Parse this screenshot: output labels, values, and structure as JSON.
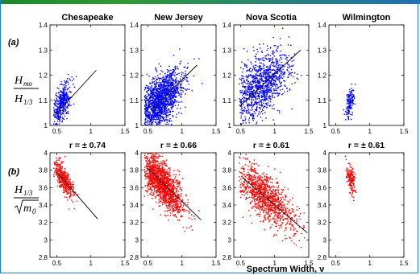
{
  "figure": {
    "row_a_label": "(a)",
    "row_b_label": "(b)",
    "xlabel": "Spectrum Width, ν",
    "ylabel_a": {
      "num": "H",
      "num_sub": "mo",
      "den": "H",
      "den_sub": "1/3"
    },
    "ylabel_b": {
      "num": "H",
      "num_sub": "1/3",
      "den_root": "m",
      "den_sub": "0"
    }
  },
  "colors": {
    "series_a": "#0000ff",
    "series_b": "#ff0000",
    "fit": "#000000",
    "accent": "#1f7fc4"
  },
  "chart_data": [
    {
      "type": "scatter",
      "row": "a",
      "title": "Chesapeake",
      "xlim": [
        0.4,
        1.5
      ],
      "ylim": [
        1.0,
        1.4
      ],
      "xticks": [
        "0.5",
        "1",
        "1.5"
      ],
      "yticks": [
        "1",
        "1.1",
        "1.2",
        "1.3",
        "1.4"
      ],
      "cloud": {
        "cx": 0.58,
        "cy": 1.09,
        "sx": 0.07,
        "sy": 0.035,
        "n": 420,
        "slope": 0.28,
        "xmin": 0.45,
        "xmax": 1.1
      },
      "fit": [
        [
          0.47,
          1.04
        ],
        [
          1.08,
          1.22
        ]
      ]
    },
    {
      "type": "scatter",
      "row": "a",
      "title": "New Jersey",
      "xlim": [
        0.4,
        1.5
      ],
      "ylim": [
        1.0,
        1.4
      ],
      "xticks": [
        "0.5",
        "1",
        "1.5"
      ],
      "yticks": [
        "1",
        "1.1",
        "1.2",
        "1.3",
        "1.4"
      ],
      "cloud": {
        "cx": 0.68,
        "cy": 1.1,
        "sx": 0.16,
        "sy": 0.05,
        "n": 1500,
        "slope": 0.2,
        "xmin": 0.45,
        "xmax": 1.3
      },
      "fit": [
        [
          0.55,
          1.06
        ],
        [
          1.22,
          1.24
        ]
      ]
    },
    {
      "type": "scatter",
      "row": "a",
      "title": "Nova Scotia",
      "xlim": [
        0.4,
        1.5
      ],
      "ylim": [
        1.0,
        1.4
      ],
      "xticks": [
        "0.5",
        "1",
        "1.5"
      ],
      "yticks": [
        "1",
        "1.1",
        "1.2",
        "1.3",
        "1.4"
      ],
      "cloud": {
        "cx": 0.8,
        "cy": 1.16,
        "sx": 0.22,
        "sy": 0.06,
        "n": 1100,
        "slope": 0.17,
        "xmin": 0.48,
        "xmax": 1.4
      },
      "fit": [
        [
          0.5,
          1.08
        ],
        [
          1.38,
          1.3
        ]
      ]
    },
    {
      "type": "scatter",
      "row": "a",
      "title": "Wilmington",
      "xlim": [
        0.4,
        1.5
      ],
      "ylim": [
        1.0,
        1.4
      ],
      "xticks": [
        "0.5",
        "1",
        "1.5"
      ],
      "yticks": [
        "1",
        "1.1",
        "1.2",
        "1.3",
        "1.4"
      ],
      "cloud": {
        "cx": 0.71,
        "cy": 1.09,
        "sx": 0.035,
        "sy": 0.025,
        "n": 160,
        "slope": 0.35,
        "xmin": 0.6,
        "xmax": 0.82
      },
      "fit": []
    },
    {
      "type": "scatter",
      "row": "b",
      "title": "r = ± 0.74",
      "xlim": [
        0.4,
        1.5
      ],
      "ylim": [
        2.8,
        4.0
      ],
      "xticks": [
        "0.5",
        "1",
        "1.5"
      ],
      "yticks": [
        "2.8",
        "3",
        "3.2",
        "3.4",
        "3.6",
        "3.8",
        "4"
      ],
      "cloud": {
        "cx": 0.6,
        "cy": 3.7,
        "sx": 0.08,
        "sy": 0.07,
        "n": 420,
        "slope": -1.0,
        "xmin": 0.45,
        "xmax": 1.1
      },
      "fit": [
        [
          0.5,
          3.78
        ],
        [
          1.1,
          3.24
        ]
      ]
    },
    {
      "type": "scatter",
      "row": "b",
      "title": "r = ± 0.66",
      "xlim": [
        0.4,
        1.5
      ],
      "ylim": [
        2.8,
        4.0
      ],
      "xticks": [
        "0.5",
        "1",
        "1.5"
      ],
      "yticks": [
        "2.8",
        "3",
        "3.2",
        "3.4",
        "3.6",
        "3.8",
        "4"
      ],
      "cloud": {
        "cx": 0.7,
        "cy": 3.65,
        "sx": 0.16,
        "sy": 0.12,
        "n": 1500,
        "slope": -0.75,
        "xmin": 0.45,
        "xmax": 1.3
      },
      "fit": [
        [
          0.5,
          3.82
        ],
        [
          1.28,
          3.23
        ]
      ]
    },
    {
      "type": "scatter",
      "row": "b",
      "title": "r = ± 0.61",
      "xlim": [
        0.4,
        1.5
      ],
      "ylim": [
        2.8,
        4.0
      ],
      "xticks": [
        "0.5",
        "1",
        "1.5"
      ],
      "yticks": [
        "2.8",
        "3",
        "3.2",
        "3.4",
        "3.6",
        "3.8",
        "4"
      ],
      "cloud": {
        "cx": 0.85,
        "cy": 3.5,
        "sx": 0.22,
        "sy": 0.13,
        "n": 1100,
        "slope": -0.65,
        "xmin": 0.48,
        "xmax": 1.45
      },
      "fit": [
        [
          0.52,
          3.72
        ],
        [
          1.48,
          3.08
        ]
      ]
    },
    {
      "type": "scatter",
      "row": "b",
      "title": "r = ± 0.61",
      "xlim": [
        0.4,
        1.5
      ],
      "ylim": [
        2.8,
        4.0
      ],
      "xticks": [
        "0.5",
        "1",
        "1.5"
      ],
      "yticks": [
        "2.8",
        "3",
        "3.2",
        "3.4",
        "3.6",
        "3.8",
        "4"
      ],
      "cloud": {
        "cx": 0.72,
        "cy": 3.7,
        "sx": 0.035,
        "sy": 0.07,
        "n": 160,
        "slope": -1.3,
        "xmin": 0.62,
        "xmax": 0.85
      },
      "fit": []
    }
  ]
}
